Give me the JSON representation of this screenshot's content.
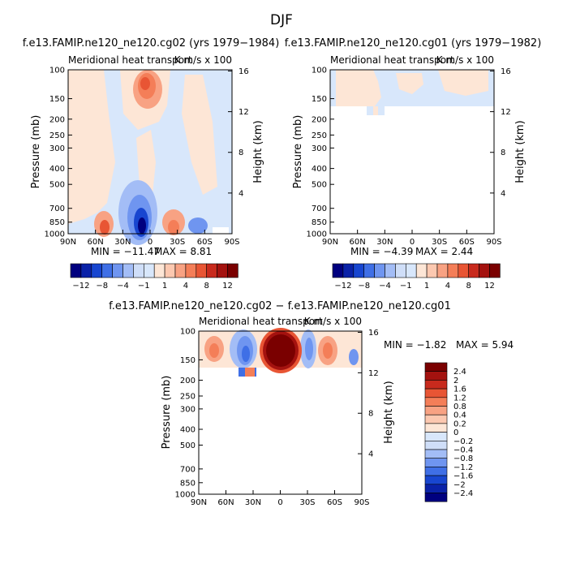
{
  "figure_title": "DJF",
  "colors": {
    "neg": [
      "#00007f",
      "#0a22a8",
      "#1846d0",
      "#3f6fe6",
      "#6f95f0",
      "#a3bdf6",
      "#cfdef8"
    ],
    "zero_neg": "#d8e7fb",
    "zero_pos": "#fde6d6",
    "pos": [
      "#fcc8b0",
      "#f8a283",
      "#f47e58",
      "#e85534",
      "#c82a1d",
      "#a4120f",
      "#7a0000"
    ]
  },
  "chart_data": [
    {
      "id": "panel1",
      "type": "heatmap",
      "title": "f.e13.FAMIP.ne120_ne120.cg02 (yrs 1979−1984)",
      "subtitle_left": "Meridional heat transport",
      "subtitle_right": "K m/s x 100",
      "xlabel": "",
      "ylabel": "Pressure (mb)",
      "y2label": "Height (km)",
      "x_ticks": [
        "90N",
        "60N",
        "30N",
        "0",
        "30S",
        "60S",
        "90S"
      ],
      "y_ticks": [
        "100",
        "150",
        "200",
        "250",
        "300",
        "400",
        "500",
        "700",
        "850",
        "1000"
      ],
      "y2_ticks": [
        "16",
        "12",
        "8",
        "4"
      ],
      "min_label": "MIN = −11.47",
      "max_label": "MAX =    8.81",
      "colorbar_labels": [
        "−12",
        "−8",
        "−4",
        "−1",
        "1",
        "4",
        "8",
        "12"
      ]
    },
    {
      "id": "panel2",
      "type": "heatmap",
      "title": "f.e13.FAMIP.ne120_ne120.cg01 (yrs 1979−1982)",
      "subtitle_left": "Meridional heat transport",
      "subtitle_right": "K m/s x 100",
      "xlabel": "",
      "ylabel": "Pressure (mb)",
      "y2label": "Height (km)",
      "x_ticks": [
        "90N",
        "60N",
        "30N",
        "0",
        "30S",
        "60S",
        "90S"
      ],
      "y_ticks": [
        "100",
        "150",
        "200",
        "250",
        "300",
        "400",
        "500",
        "700",
        "850",
        "1000"
      ],
      "y2_ticks": [
        "16",
        "12",
        "8",
        "4"
      ],
      "min_label": "MIN =   −4.39",
      "max_label": "MAX =    2.44",
      "colorbar_labels": [
        "−12",
        "−8",
        "−4",
        "−1",
        "1",
        "4",
        "8",
        "12"
      ]
    },
    {
      "id": "panel3",
      "type": "heatmap",
      "title": "f.e13.FAMIP.ne120_ne120.cg02 − f.e13.FAMIP.ne120_ne120.cg01",
      "subtitle_left": "Meridional heat transport",
      "subtitle_right": "K m/s x 100",
      "xlabel": "",
      "ylabel": "Pressure (mb)",
      "y2label": "Height (km)",
      "x_ticks": [
        "90N",
        "60N",
        "30N",
        "0",
        "30S",
        "60S",
        "90S"
      ],
      "y_ticks": [
        "100",
        "150",
        "200",
        "250",
        "300",
        "400",
        "500",
        "700",
        "850",
        "1000"
      ],
      "y2_ticks": [
        "16",
        "12",
        "8",
        "4"
      ],
      "min_label": "MIN =   −1.82",
      "max_label": "MAX =    5.94",
      "colorbar_labels": [
        "2.4",
        "2",
        "1.6",
        "1.2",
        "0.8",
        "0.4",
        "0.2",
        "0",
        "−0.2",
        "−0.4",
        "−0.8",
        "−1.2",
        "−1.6",
        "−2",
        "−2.4"
      ]
    }
  ]
}
